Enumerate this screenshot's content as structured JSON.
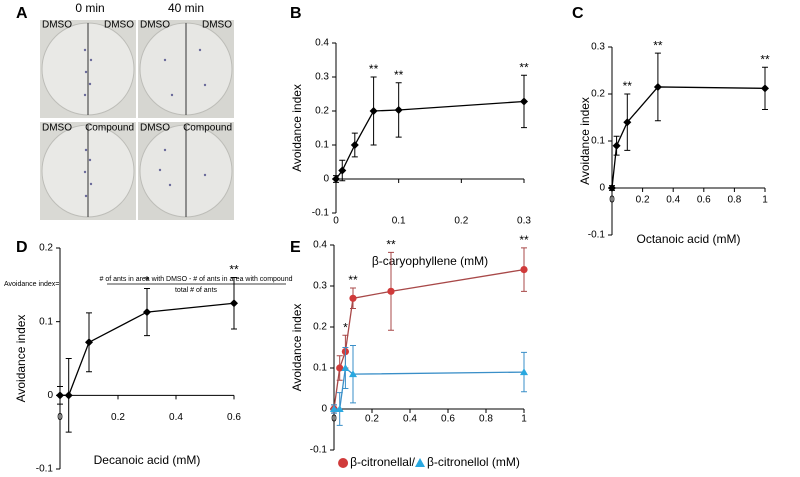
{
  "panel_a": {
    "panel": "A",
    "columns": [
      "0 min",
      "40 min"
    ],
    "dishes": [
      {
        "left": "DMSO",
        "right": "DMSO"
      },
      {
        "left": "DMSO",
        "right": "DMSO"
      },
      {
        "left": "DMSO",
        "right": "Compound"
      },
      {
        "left": "DMSO",
        "right": "Compound"
      }
    ],
    "formula": {
      "lhs": "Avoidance index=",
      "numerator": "# of ants in area with DMSO - # of ants in area with compound",
      "denominator": "total # of ants"
    }
  },
  "chart_data": [
    {
      "type": "line",
      "panel": "B",
      "y_label": "Avoidance index",
      "x_label": "β-caryophyllene (mM)",
      "xlim": [
        0,
        0.3
      ],
      "xticks": [
        0,
        0.1,
        0.2,
        0.3
      ],
      "ylim": [
        -0.1,
        0.4
      ],
      "yticks": [
        -0.1,
        0,
        0.1,
        0.2,
        0.3,
        0.4
      ],
      "series": [
        {
          "color": "#000000",
          "marker": "diamond",
          "x": [
            0,
            0.01,
            0.03,
            0.06,
            0.1,
            0.3
          ],
          "values": [
            0,
            0.025,
            0.1,
            0.2,
            0.203,
            0.228
          ],
          "errors": [
            0.01,
            0.03,
            0.035,
            0.1,
            0.08,
            0.077
          ]
        }
      ],
      "annotations": [
        {
          "x": 0.06,
          "text": "**"
        },
        {
          "x": 0.1,
          "text": "**"
        },
        {
          "x": 0.3,
          "text": "**"
        }
      ]
    },
    {
      "type": "line",
      "panel": "C",
      "y_label": "Avoidance index",
      "x_label": "Octanoic acid (mM)",
      "xlim": [
        0,
        1
      ],
      "xticks": [
        0,
        0.2,
        0.4,
        0.6,
        0.8,
        1
      ],
      "ylim": [
        -0.1,
        0.3
      ],
      "yticks": [
        -0.1,
        0,
        0.1,
        0.2,
        0.3
      ],
      "series": [
        {
          "color": "#000000",
          "marker": "diamond",
          "x": [
            0,
            0.03,
            0.1,
            0.3,
            1
          ],
          "values": [
            0,
            0.09,
            0.14,
            0.215,
            0.212
          ],
          "errors": [
            0.005,
            0.02,
            0.06,
            0.072,
            0.045
          ]
        }
      ],
      "annotations": [
        {
          "x": 0.1,
          "text": "**"
        },
        {
          "x": 0.3,
          "text": "**"
        },
        {
          "x": 1,
          "text": "**"
        }
      ]
    },
    {
      "type": "line",
      "panel": "D",
      "y_label": "Avoidance index",
      "x_label": "Decanoic acid (mM)",
      "xlim": [
        0,
        0.6
      ],
      "xticks": [
        0,
        0.2,
        0.4,
        0.6
      ],
      "ylim": [
        -0.1,
        0.2
      ],
      "yticks": [
        -0.1,
        0,
        0.1,
        0.2
      ],
      "series": [
        {
          "color": "#000000",
          "marker": "diamond",
          "x": [
            0,
            0.03,
            0.1,
            0.3,
            0.6
          ],
          "values": [
            0,
            0,
            0.072,
            0.113,
            0.125
          ],
          "errors": [
            0.012,
            0.05,
            0.04,
            0.032,
            0.035
          ]
        }
      ],
      "annotations": [
        {
          "x": 0.3,
          "text": "*"
        },
        {
          "x": 0.6,
          "text": "**"
        }
      ]
    },
    {
      "type": "line",
      "panel": "E",
      "y_label": "Avoidance index",
      "x_label_separator": "/",
      "x_label_unit": " (mM)",
      "xlim": [
        0,
        1
      ],
      "xticks": [
        0,
        0.2,
        0.4,
        0.6,
        0.8,
        1
      ],
      "ylim": [
        -0.1,
        0.4
      ],
      "yticks": [
        -0.1,
        0,
        0.1,
        0.2,
        0.3,
        0.4
      ],
      "series": [
        {
          "name": "β-citronellal",
          "color": "#a84848",
          "marker_color": "#d03a3a",
          "marker": "circle",
          "x": [
            0,
            0.03,
            0.06,
            0.1,
            0.3,
            1
          ],
          "values": [
            0,
            0.1,
            0.14,
            0.27,
            0.287,
            0.34
          ],
          "errors": [
            0.01,
            0.03,
            0.04,
            0.025,
            0.095,
            0.053
          ]
        },
        {
          "name": "β-citronellol",
          "color": "#3a8fc8",
          "marker_color": "#29a8e0",
          "marker": "triangle",
          "x": [
            0,
            0.03,
            0.06,
            0.1,
            1
          ],
          "values": [
            0,
            0,
            0.1,
            0.085,
            0.09
          ],
          "errors": [
            0.01,
            0.04,
            0.05,
            0.07,
            0.048
          ]
        }
      ],
      "annotations": [
        {
          "x": 0.06,
          "text": "*"
        },
        {
          "x": 0.1,
          "text": "**"
        },
        {
          "x": 0.3,
          "text": "**"
        },
        {
          "x": 1,
          "text": "**"
        }
      ]
    }
  ]
}
